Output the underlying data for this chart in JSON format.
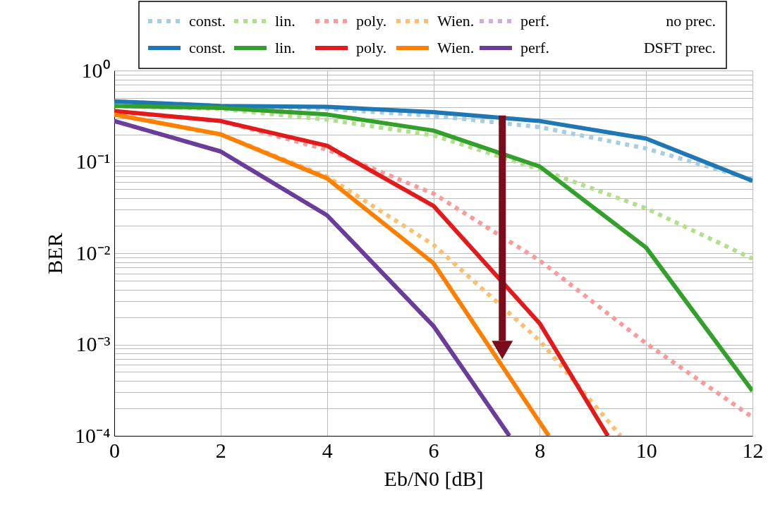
{
  "chart_data": {
    "type": "line",
    "xlabel": "Eb/N0 [dB]",
    "ylabel": "BER",
    "log": "y",
    "x": [
      0,
      2,
      4,
      6,
      8,
      10,
      12
    ],
    "xlim": [
      0,
      12
    ],
    "xticks": [
      0,
      2,
      4,
      6,
      8,
      10,
      12
    ],
    "ylim": [
      0.0001,
      1
    ],
    "yticks": [
      {
        "value": 0.0001,
        "label": "10⁻⁴"
      },
      {
        "value": 0.0002,
        "label": null
      },
      {
        "value": 0.0003,
        "label": null
      },
      {
        "value": 0.0004,
        "label": null
      },
      {
        "value": 0.0005,
        "label": null
      },
      {
        "value": 0.0006,
        "label": null
      },
      {
        "value": 0.0007,
        "label": null
      },
      {
        "value": 0.0008,
        "label": null
      },
      {
        "value": 0.0009,
        "label": null
      },
      {
        "value": 0.001,
        "label": "10⁻³"
      },
      {
        "value": 0.002,
        "label": null
      },
      {
        "value": 0.003,
        "label": null
      },
      {
        "value": 0.004,
        "label": null
      },
      {
        "value": 0.005,
        "label": null
      },
      {
        "value": 0.006,
        "label": null
      },
      {
        "value": 0.007,
        "label": null
      },
      {
        "value": 0.008,
        "label": null
      },
      {
        "value": 0.009,
        "label": null
      },
      {
        "value": 0.01,
        "label": "10⁻²"
      },
      {
        "value": 0.02,
        "label": null
      },
      {
        "value": 0.03,
        "label": null
      },
      {
        "value": 0.04,
        "label": null
      },
      {
        "value": 0.05,
        "label": null
      },
      {
        "value": 0.06,
        "label": null
      },
      {
        "value": 0.07,
        "label": null
      },
      {
        "value": 0.08,
        "label": null
      },
      {
        "value": 0.09,
        "label": null
      },
      {
        "value": 0.1,
        "label": "10⁻¹"
      },
      {
        "value": 0.2,
        "label": null
      },
      {
        "value": 0.3,
        "label": null
      },
      {
        "value": 0.4,
        "label": null
      },
      {
        "value": 0.5,
        "label": null
      },
      {
        "value": 0.6,
        "label": null
      },
      {
        "value": 0.7,
        "label": null
      },
      {
        "value": 0.8,
        "label": null
      },
      {
        "value": 0.9,
        "label": null
      },
      {
        "value": 1,
        "label": "10⁰"
      }
    ],
    "grid": true,
    "legend": "top",
    "marker": "none",
    "annotations": [
      "no prec.",
      "DSFT prec."
    ],
    "series": [
      {
        "name": "const.",
        "color": "#a6cee3",
        "line_style": "dotted",
        "values": [
          0.46,
          0.41,
          0.38,
          0.32,
          0.24,
          0.14,
          0.064
        ]
      },
      {
        "name": "lin.",
        "color": "#b2df8a",
        "line_style": "dotted",
        "values": [
          0.41,
          0.38,
          0.29,
          0.195,
          0.083,
          0.031,
          0.0087
        ]
      },
      {
        "name": "poly.",
        "color": "#fb9a99",
        "line_style": "dotted",
        "values": [
          0.36,
          0.28,
          0.136,
          0.045,
          0.0083,
          0.00103,
          0.00016
        ]
      },
      {
        "name": "Wien.",
        "color": "#fdbf6f",
        "line_style": "dotted",
        "x": [
          0,
          2,
          4,
          6,
          8,
          9.52
        ],
        "values": [
          0.33,
          0.2,
          0.069,
          0.0124,
          0.0011,
          0.0001
        ]
      },
      {
        "name": "perf.",
        "color": "#cab2d6",
        "line_style": "dotted",
        "x": [
          0,
          2,
          4,
          6,
          7.43
        ],
        "values": [
          0.28,
          0.13,
          0.026,
          0.0016,
          0.0001
        ]
      },
      {
        "name": "const.",
        "color": "#1f78b4",
        "line_style": "solid",
        "values": [
          0.46,
          0.41,
          0.4,
          0.35,
          0.28,
          0.18,
          0.062
        ]
      },
      {
        "name": "lin.",
        "color": "#33a02c",
        "line_style": "solid",
        "values": [
          0.41,
          0.39,
          0.33,
          0.22,
          0.089,
          0.0115,
          0.00031
        ]
      },
      {
        "name": "poly.",
        "color": "#e31a1c",
        "line_style": "solid",
        "x": [
          0,
          2,
          4,
          6,
          8,
          9.28
        ],
        "values": [
          0.36,
          0.28,
          0.15,
          0.033,
          0.0017,
          0.0001
        ]
      },
      {
        "name": "Wien.",
        "color": "#ff7f00",
        "line_style": "solid",
        "x": [
          0,
          2,
          4,
          6,
          8.17
        ],
        "values": [
          0.33,
          0.2,
          0.066,
          0.0078,
          0.0001
        ]
      },
      {
        "name": "perf.",
        "color": "#6a3d9a",
        "line_style": "solid",
        "x": [
          0,
          2,
          4,
          6,
          7.43
        ],
        "values": [
          0.28,
          0.13,
          0.026,
          0.0016,
          0.0001
        ]
      }
    ]
  }
}
